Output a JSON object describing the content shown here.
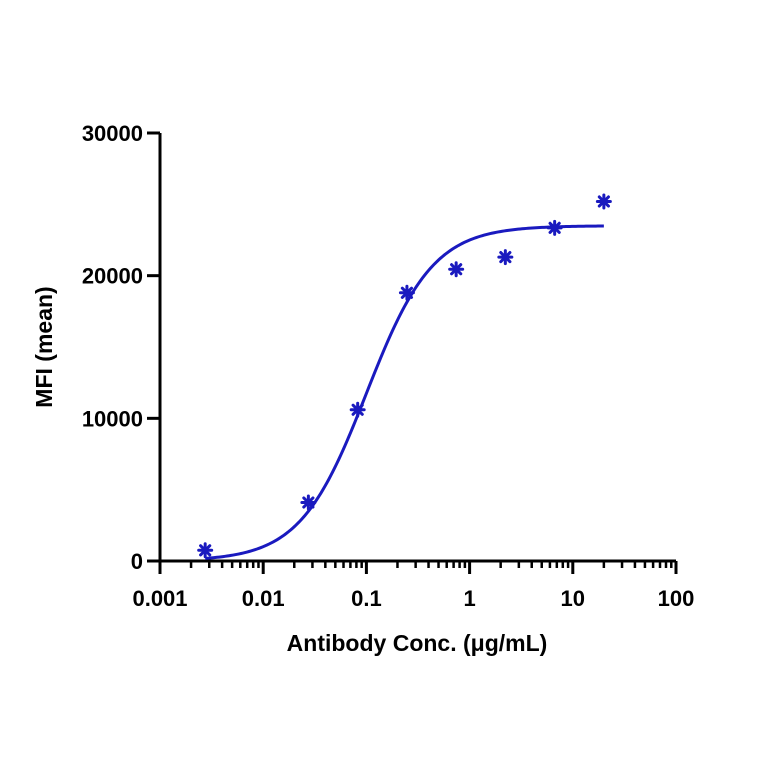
{
  "chart_data": {
    "type": "scatter",
    "title": "",
    "xlabel": "Antibody Conc. (μg/mL)",
    "ylabel": "MFI (mean)",
    "x_scale": "log",
    "xlim": [
      0.001,
      100
    ],
    "ylim": [
      0,
      30000
    ],
    "x_ticks": [
      0.001,
      0.01,
      0.1,
      1,
      10,
      100
    ],
    "x_tick_labels": [
      "0.001",
      "0.01",
      "0.1",
      "1",
      "10",
      "100"
    ],
    "y_ticks": [
      0,
      10000,
      20000,
      30000
    ],
    "y_tick_labels": [
      "0",
      "10000",
      "20000",
      "30000"
    ],
    "grid": false,
    "legend": "none",
    "series": [
      {
        "marker": "asterisk",
        "color": "#1a1abf",
        "x": [
          0.00274,
          0.0274,
          0.0823,
          0.247,
          0.741,
          2.22,
          6.67,
          20
        ],
        "y": [
          750,
          4100,
          10600,
          18800,
          20450,
          21300,
          23350,
          25200
        ]
      }
    ],
    "fit_curve": {
      "color": "#1a1abf",
      "model": "four-parameter logistic",
      "bottom": 0,
      "top": 23500,
      "ec50": 0.1,
      "hill": 1.35,
      "x_range": [
        0.00274,
        20
      ]
    }
  }
}
